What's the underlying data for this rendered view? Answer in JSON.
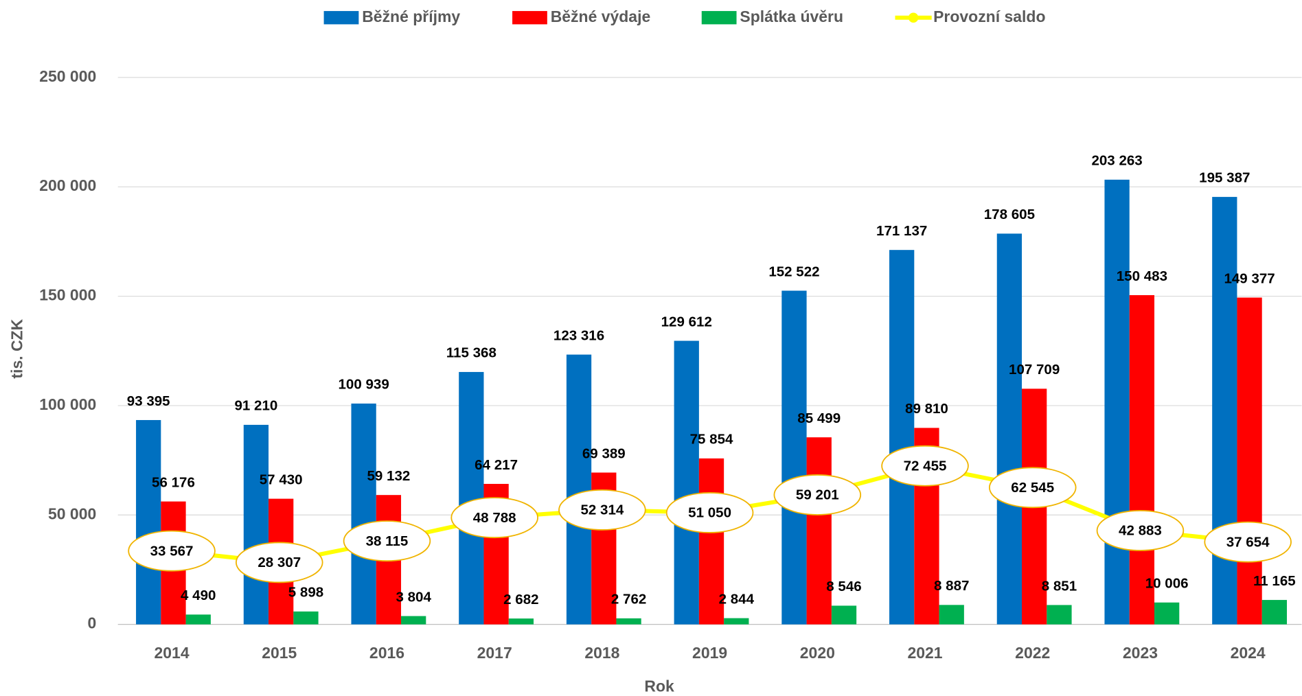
{
  "chart_data": {
    "type": "bar",
    "categories": [
      "2014",
      "2015",
      "2016",
      "2017",
      "2018",
      "2019",
      "2020",
      "2021",
      "2022",
      "2023",
      "2024"
    ],
    "series": [
      {
        "name": "Běžné příjmy",
        "color": "#0070c0",
        "type": "bar",
        "values": [
          93395,
          91210,
          100939,
          115368,
          123316,
          129612,
          152522,
          171137,
          178605,
          203263,
          195387
        ],
        "value_labels": [
          "93 395",
          "91 210",
          "100 939",
          "115 368",
          "123 316",
          "129 612",
          "152 522",
          "171 137",
          "178 605",
          "203 263",
          "195 387"
        ]
      },
      {
        "name": "Běžné výdaje",
        "color": "#ff0000",
        "type": "bar",
        "values": [
          56176,
          57430,
          59132,
          64217,
          69389,
          75854,
          85499,
          89810,
          107709,
          150483,
          149377
        ],
        "value_labels": [
          "56 176",
          "57 430",
          "59 132",
          "64 217",
          "69 389",
          "75 854",
          "85 499",
          "89 810",
          "107 709",
          "150 483",
          "149 377"
        ]
      },
      {
        "name": "Splátka úvěru",
        "color": "#00b050",
        "type": "bar",
        "values": [
          4490,
          5898,
          3804,
          2682,
          2762,
          2844,
          8546,
          8887,
          8851,
          10006,
          11165
        ],
        "value_labels": [
          "4 490",
          "5 898",
          "3 804",
          "2 682",
          "2 762",
          "2 844",
          "8 546",
          "8 887",
          "8 851",
          "10 006",
          "11 165"
        ]
      },
      {
        "name": "Provozní saldo",
        "color": "#ffff00",
        "type": "line",
        "values": [
          33567,
          28307,
          38115,
          48788,
          52314,
          51050,
          59201,
          72455,
          62545,
          42883,
          37654
        ],
        "value_labels": [
          "33 567",
          "28 307",
          "38 115",
          "48 788",
          "52 314",
          "51 050",
          "59 201",
          "72 455",
          "62 545",
          "42 883",
          "37 654"
        ]
      }
    ],
    "ylabel": "tis. CZK",
    "xlabel": "Rok",
    "ylim": [
      0,
      250000
    ],
    "yticks": [
      0,
      {
        "value": 50000,
        "label": "50 000"
      },
      {
        "value": 100000,
        "label": "100 000"
      },
      {
        "value": 150000,
        "label": "150 000"
      },
      {
        "value": 200000,
        "label": "200 000"
      },
      {
        "value": 250000,
        "label": "250 000"
      }
    ],
    "grid": true,
    "legend": "top"
  }
}
